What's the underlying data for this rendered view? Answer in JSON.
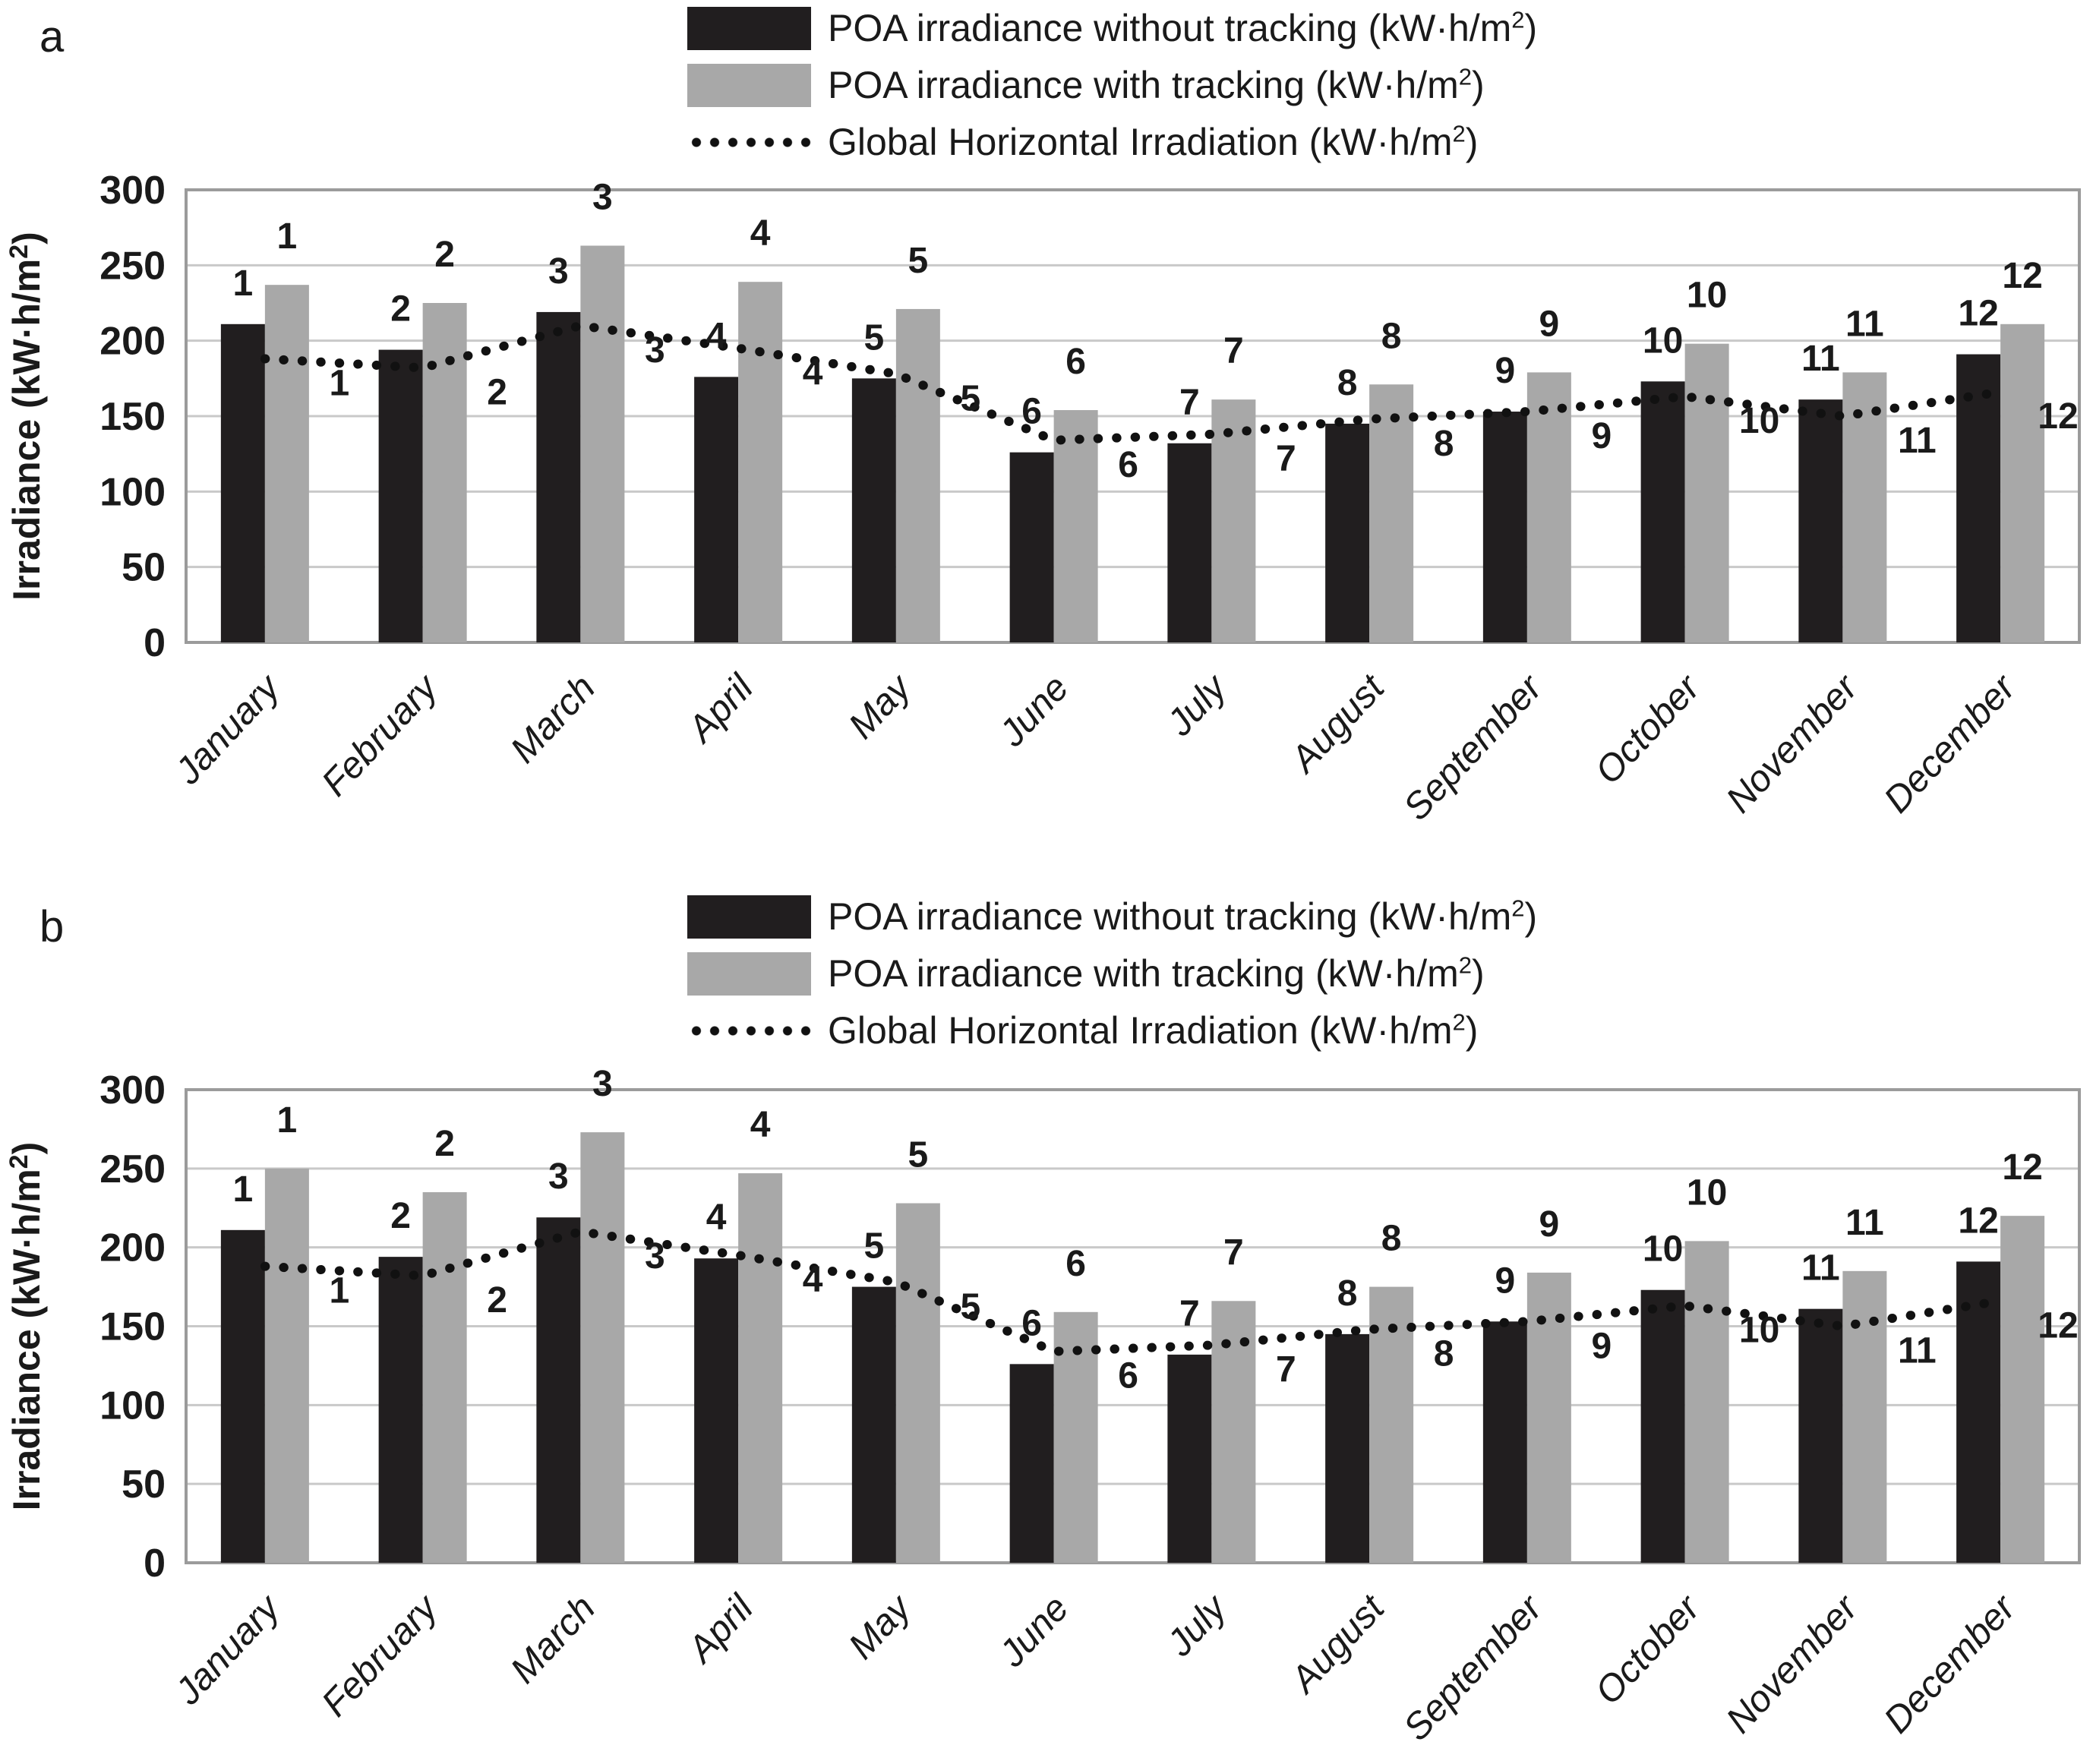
{
  "figure": {
    "panel_a": {
      "letter": "a"
    },
    "panel_b": {
      "letter": "b"
    },
    "legend": [
      "POA irradiance without tracking (kW·h/m2)",
      "POA irradiance with tracking (kW·h/m2)",
      "Global Horizontal Irradiation (kW·h/m2)"
    ],
    "colors": {
      "bar_without": "#211e1f",
      "bar_with": "#a8a8a8",
      "line": "#111111",
      "grid": "#c9c9c9",
      "border": "#9b9b9b",
      "text": "#1a1a1a"
    }
  },
  "chart_data": [
    {
      "id": "a",
      "type": "bar",
      "title": "",
      "xlabel": "",
      "ylabel": "Irradiance (kW·h/m2)",
      "ylim": [
        0,
        300
      ],
      "ytick_step": 50,
      "grid": true,
      "legend_position": "top",
      "categories": [
        "January",
        "February",
        "March",
        "April",
        "May",
        "June",
        "July",
        "August",
        "September",
        "October",
        "November",
        "December"
      ],
      "month_numbers": [
        1,
        2,
        3,
        4,
        5,
        6,
        7,
        8,
        9,
        10,
        11,
        12
      ],
      "series": [
        {
          "name": "POA irradiance without tracking (kW·h/m2)",
          "type": "bar",
          "color": "#211e1f",
          "values": [
            211,
            194,
            219,
            176,
            175,
            126,
            132,
            145,
            153,
            173,
            161,
            191
          ]
        },
        {
          "name": "POA irradiance with tracking (kW·h/m2)",
          "type": "bar",
          "color": "#a8a8a8",
          "values": [
            237,
            225,
            263,
            239,
            221,
            154,
            161,
            171,
            179,
            198,
            179,
            211
          ]
        },
        {
          "name": "Global Horizontal Irradiation (kW·h/m2)",
          "type": "dotted-line",
          "color": "#111111",
          "values": [
            188,
            182,
            210,
            195,
            178,
            134,
            138,
            148,
            153,
            163,
            150,
            166
          ]
        }
      ]
    },
    {
      "id": "b",
      "type": "bar",
      "title": "",
      "xlabel": "",
      "ylabel": "Irradiance (kW·h/m2)",
      "ylim": [
        0,
        300
      ],
      "ytick_step": 50,
      "grid": true,
      "legend_position": "top",
      "categories": [
        "January",
        "February",
        "March",
        "April",
        "May",
        "June",
        "July",
        "August",
        "September",
        "October",
        "November",
        "December"
      ],
      "month_numbers": [
        1,
        2,
        3,
        4,
        5,
        6,
        7,
        8,
        9,
        10,
        11,
        12
      ],
      "series": [
        {
          "name": "POA irradiance without tracking (kW·h/m2)",
          "type": "bar",
          "color": "#211e1f",
          "values": [
            211,
            194,
            219,
            193,
            175,
            126,
            132,
            145,
            153,
            173,
            161,
            191
          ]
        },
        {
          "name": "POA irradiance with tracking (kW·h/m2)",
          "type": "bar",
          "color": "#a8a8a8",
          "values": [
            250,
            235,
            273,
            247,
            228,
            159,
            166,
            175,
            184,
            204,
            185,
            220
          ]
        },
        {
          "name": "Global Horizontal Irradiation (kW·h/m2)",
          "type": "dotted-line",
          "color": "#111111",
          "values": [
            188,
            182,
            210,
            195,
            178,
            134,
            138,
            148,
            153,
            163,
            150,
            166
          ]
        }
      ]
    }
  ]
}
